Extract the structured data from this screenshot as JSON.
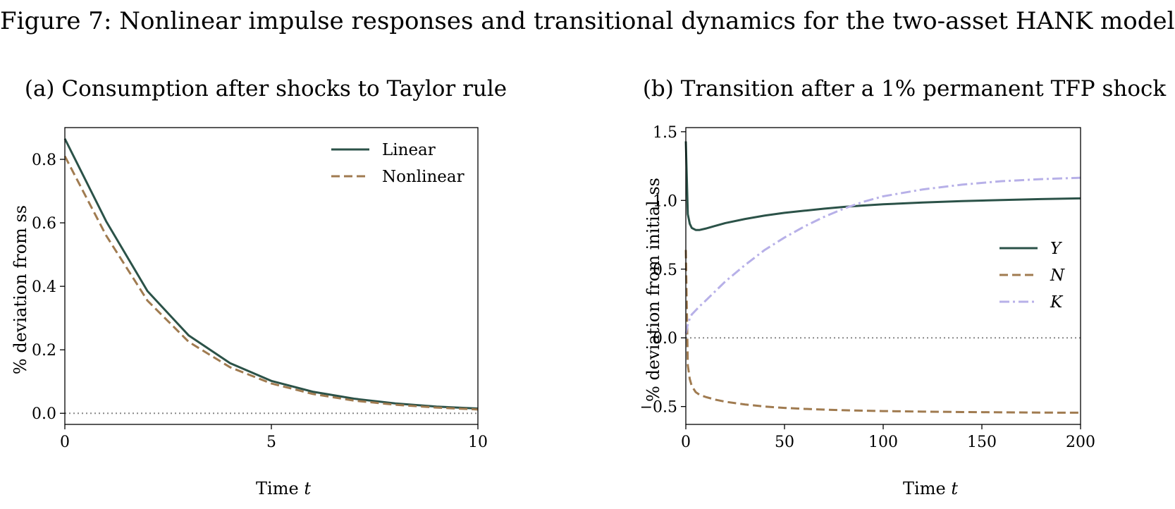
{
  "figure": {
    "title": "Figure 7: Nonlinear impulse responses and transitional dynamics for the two-asset HANK model"
  },
  "colors": {
    "Y": "#2b5248",
    "N": "#a07b50",
    "K": "#b7b0e8",
    "zero_line": "#888888"
  },
  "chart_data": [
    {
      "type": "line",
      "title": "(a) Consumption after shocks to Taylor rule",
      "xlabel": "Time t",
      "ylabel": "% deviation from ss",
      "xlim": [
        0,
        10
      ],
      "ylim": [
        -0.035,
        0.9
      ],
      "xticks": [
        0,
        5,
        10
      ],
      "xtick_labels": [
        "0",
        "5",
        "10"
      ],
      "yticks": [
        0.0,
        0.2,
        0.4,
        0.6,
        0.8
      ],
      "ytick_labels": [
        "0.0",
        "0.2",
        "0.4",
        "0.6",
        "0.8"
      ],
      "grid": false,
      "legend_position": "top-right",
      "zero_line": true,
      "x": [
        0,
        1,
        2,
        3,
        4,
        5,
        6,
        7,
        8,
        9,
        10
      ],
      "series": [
        {
          "name": "Linear",
          "style": "solid",
          "color": "#2b5248",
          "values": [
            0.865,
            0.605,
            0.385,
            0.245,
            0.158,
            0.102,
            0.068,
            0.046,
            0.031,
            0.021,
            0.015
          ]
        },
        {
          "name": "Nonlinear",
          "style": "dashed",
          "color": "#a07b50",
          "values": [
            0.81,
            0.56,
            0.355,
            0.225,
            0.145,
            0.094,
            0.061,
            0.04,
            0.027,
            0.018,
            0.012
          ]
        }
      ]
    },
    {
      "type": "line",
      "title": "(b) Transition after a 1% permanent TFP shock",
      "xlabel": "Time t",
      "ylabel": "% deviation from initial ss",
      "xlim": [
        0,
        200
      ],
      "ylim": [
        -0.63,
        1.53
      ],
      "xticks": [
        0,
        50,
        100,
        150,
        200
      ],
      "xtick_labels": [
        "0",
        "50",
        "100",
        "150",
        "200"
      ],
      "yticks": [
        -0.5,
        0.0,
        0.5,
        1.0,
        1.5
      ],
      "ytick_labels": [
        "−0.5",
        "0.0",
        "0.5",
        "1.0",
        "1.5"
      ],
      "grid": false,
      "legend_position": "center-right",
      "zero_line": true,
      "x": [
        0,
        1,
        2,
        3,
        5,
        7,
        10,
        15,
        20,
        30,
        40,
        50,
        60,
        70,
        80,
        90,
        100,
        120,
        140,
        160,
        180,
        200
      ],
      "series": [
        {
          "name": "Y",
          "style": "solid",
          "color": "#2b5248",
          "values": [
            1.43,
            0.9,
            0.83,
            0.8,
            0.785,
            0.785,
            0.795,
            0.815,
            0.835,
            0.865,
            0.89,
            0.91,
            0.925,
            0.94,
            0.953,
            0.963,
            0.972,
            0.985,
            0.995,
            1.003,
            1.01,
            1.015
          ]
        },
        {
          "name": "N",
          "style": "dashed",
          "color": "#a07b50",
          "values": [
            0.64,
            -0.2,
            -0.3,
            -0.35,
            -0.395,
            -0.415,
            -0.43,
            -0.45,
            -0.465,
            -0.485,
            -0.5,
            -0.51,
            -0.517,
            -0.522,
            -0.527,
            -0.53,
            -0.533,
            -0.537,
            -0.54,
            -0.542,
            -0.544,
            -0.545
          ]
        },
        {
          "name": "K",
          "style": "dashdot",
          "color": "#b7b0e8",
          "values": [
            0.03,
            0.1,
            0.14,
            0.17,
            0.2,
            0.23,
            0.27,
            0.34,
            0.41,
            0.53,
            0.64,
            0.73,
            0.81,
            0.88,
            0.94,
            0.99,
            1.03,
            1.08,
            1.115,
            1.14,
            1.155,
            1.165
          ]
        }
      ]
    }
  ]
}
